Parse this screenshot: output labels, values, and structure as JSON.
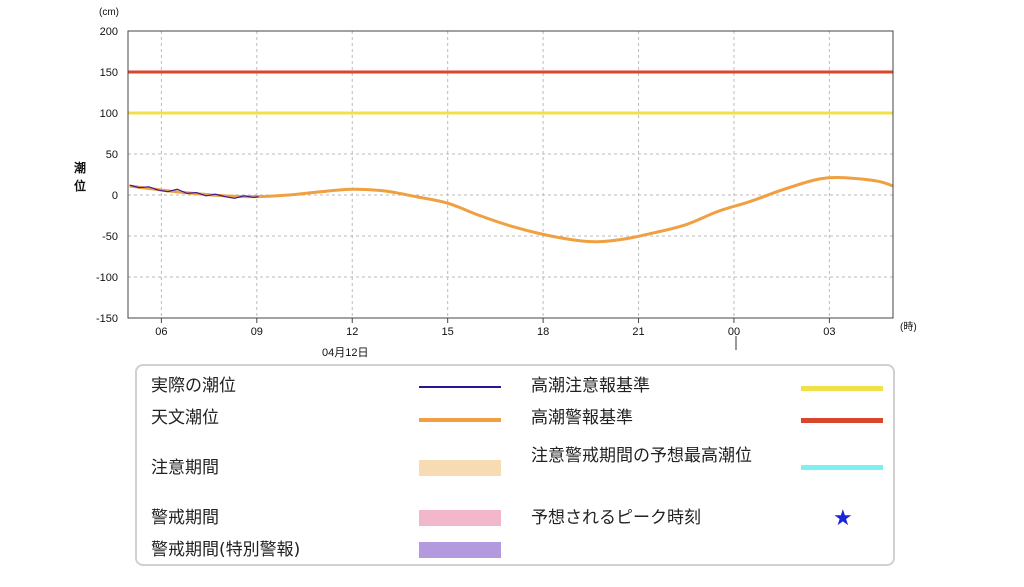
{
  "chart_data": {
    "type": "line",
    "unit_label": "(cm)",
    "ylabel": "潮位",
    "x_unit_label": "(時)",
    "date_label": "04月12日",
    "ylim": [
      -150,
      200
    ],
    "yticks": [
      -150,
      -100,
      -50,
      0,
      50,
      100,
      150,
      200
    ],
    "xlim": [
      "04:57",
      "05:57 next day"
    ],
    "xticks": [
      "06",
      "09",
      "12",
      "15",
      "18",
      "21",
      "00",
      "03"
    ],
    "grid": true,
    "thresholds": [
      {
        "name": "高潮警報基準",
        "value": 150,
        "color": "#d9462b"
      },
      {
        "name": "高潮注意報基準",
        "value": 100,
        "color": "#f0e04a"
      }
    ],
    "series": [
      {
        "name": "実際の潮位",
        "color": "#3a1aa0",
        "x_hours": [
          5.0,
          5.3,
          5.6,
          5.9,
          6.2,
          6.5,
          6.8,
          7.1,
          7.4,
          7.7,
          8.0,
          8.3,
          8.6,
          8.9,
          9.05
        ],
        "values": [
          12,
          9,
          10,
          6,
          4,
          7,
          2,
          3,
          -1,
          1,
          -2,
          -4,
          -1,
          -3,
          -2
        ]
      },
      {
        "name": "天文潮位",
        "color": "#f0a040",
        "x_hours": [
          5.0,
          6.0,
          7.0,
          8.0,
          9.0,
          10.0,
          11.0,
          12.0,
          13.0,
          14.0,
          15.0,
          16.0,
          17.0,
          18.0,
          19.0,
          19.7,
          20.5,
          21.5,
          22.5,
          23.5,
          24.5,
          25.5,
          26.5,
          27.0,
          27.5,
          28.5,
          29.0
        ],
        "values": [
          11,
          6,
          2,
          -1,
          -2,
          0,
          4,
          7,
          5,
          -2,
          -10,
          -25,
          -38,
          -48,
          -55,
          -57,
          -54,
          -46,
          -36,
          -20,
          -8,
          6,
          18,
          21,
          21,
          17,
          11
        ]
      }
    ]
  },
  "legend": {
    "left": [
      {
        "label": "実際の潮位",
        "kind": "line",
        "color": "#2a1490"
      },
      {
        "label": "天文潮位",
        "kind": "line",
        "color": "#f0a040"
      },
      {
        "label": "注意期間",
        "kind": "box",
        "color": "#f7dcb3"
      },
      {
        "label": "警戒期間",
        "kind": "box",
        "color": "#f2b7cb"
      },
      {
        "label": "警戒期間(特別警報)",
        "kind": "box",
        "color": "#b39ade"
      }
    ],
    "right": [
      {
        "label": "高潮注意報基準",
        "kind": "line",
        "color": "#f0e04a"
      },
      {
        "label": "高潮警報基準",
        "kind": "line",
        "color": "#d9462b"
      },
      {
        "label": "注意警戒期間の予想最高潮位",
        "label_line2": "位",
        "kind": "line",
        "color": "#7df0f2"
      },
      {
        "label": "予想されるピーク時刻",
        "kind": "star",
        "color": "#1a24d8"
      }
    ]
  }
}
